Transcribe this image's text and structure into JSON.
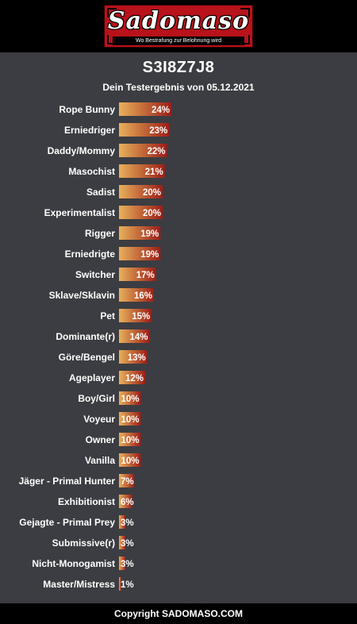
{
  "brand": {
    "name": "Sadomaso",
    "tagline": "Wo Bestrafung zur Belohnung wird"
  },
  "result": {
    "title": "S3I8Z7J8",
    "subtitle": "Dein Testergebnis von 05.12.2021"
  },
  "footer": {
    "copyright": "Copyright SADOMASO.COM"
  },
  "colors": {
    "bar_start": "#e8b15b",
    "bar_end": "#9c1d17",
    "panel_bg": "#3c3d42",
    "logo_red": "#b8121a"
  },
  "chart_data": {
    "type": "bar",
    "orientation": "horizontal",
    "categories": [
      "Rope Bunny",
      "Erniedriger",
      "Daddy/Mommy",
      "Masochist",
      "Sadist",
      "Experimentalist",
      "Rigger",
      "Erniedrigte",
      "Switcher",
      "Sklave/Sklavin",
      "Pet",
      "Dominante(r)",
      "Göre/Bengel",
      "Ageplayer",
      "Boy/Girl",
      "Voyeur",
      "Owner",
      "Vanilla",
      "Jäger - Primal Hunter",
      "Exhibitionist",
      "Gejagte - Primal Prey",
      "Submissive(r)",
      "Nicht-Monogamist",
      "Master/Mistress"
    ],
    "values": [
      24,
      23,
      22,
      21,
      20,
      20,
      19,
      19,
      17,
      16,
      15,
      14,
      13,
      12,
      10,
      10,
      10,
      10,
      7,
      6,
      3,
      3,
      3,
      1
    ],
    "labels": [
      "24%",
      "23%",
      "22%",
      "21%",
      "20%",
      "20%",
      "19%",
      "19%",
      "17%",
      "16%",
      "15%",
      "14%",
      "13%",
      "12%",
      "10%",
      "10%",
      "10%",
      "10%",
      "7%",
      "6%",
      "3%",
      "3%",
      "3%",
      "1%"
    ],
    "unit": "%"
  }
}
